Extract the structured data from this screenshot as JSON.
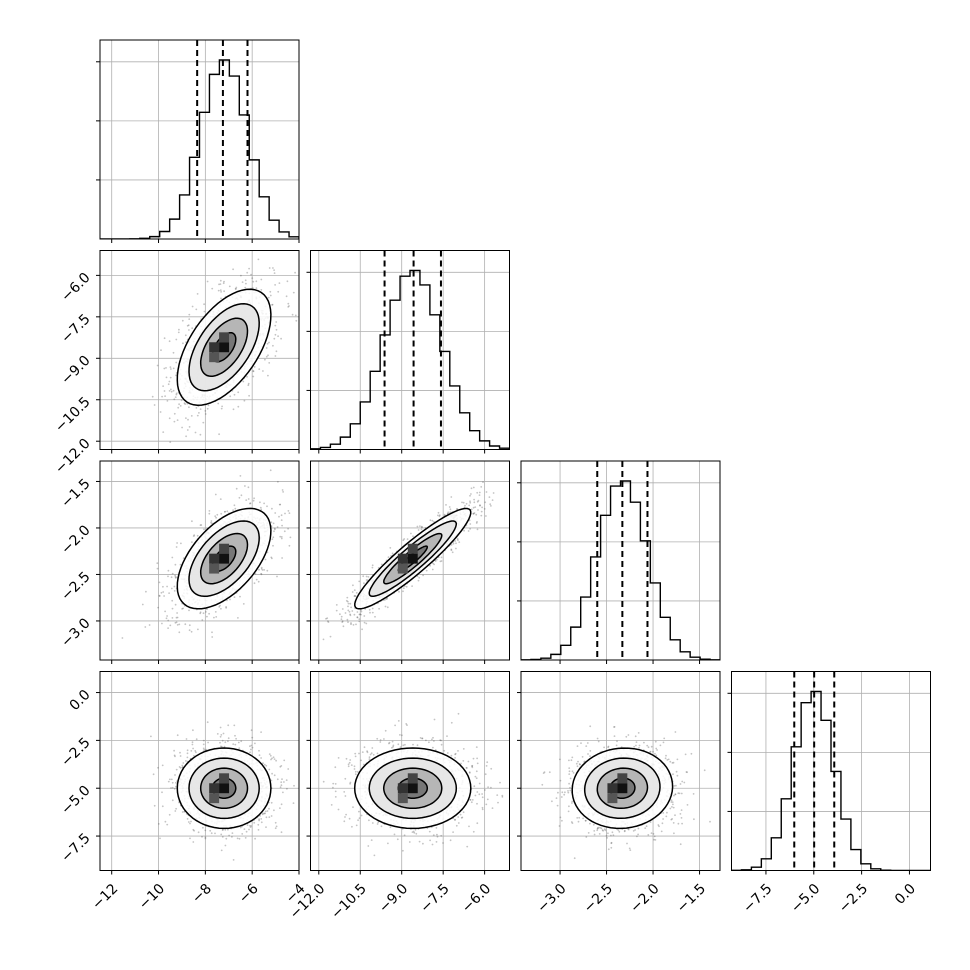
{
  "chart_data": {
    "type": "scatter",
    "subtype": "corner-plot",
    "grid": true,
    "n_params": 4,
    "params": [
      {
        "range": [
          -12.5,
          -4.0
        ],
        "ticks": [
          -12,
          -10,
          -8,
          -6,
          -4
        ],
        "tick_labels": [
          "−12",
          "−10",
          "−8",
          "−6",
          "−4"
        ],
        "mean": -7.2,
        "sigma": 1.0
      },
      {
        "range": [
          -12.3,
          -5.1
        ],
        "ticks": [
          -12.0,
          -10.5,
          -9.0,
          -7.5,
          -6.0
        ],
        "tick_labels": [
          "−12.0",
          "−10.5",
          "−9.0",
          "−7.5",
          "−6.0"
        ],
        "mean": -8.6,
        "sigma": 1.05
      },
      {
        "range": [
          -3.42,
          -1.28
        ],
        "ticks": [
          -3.0,
          -2.5,
          -2.0,
          -1.5
        ],
        "tick_labels": [
          "−3.0",
          "−2.5",
          "−2.0",
          "−1.5"
        ],
        "mean": -2.33,
        "sigma": 0.27
      },
      {
        "range": [
          -9.3,
          1.1
        ],
        "ticks": [
          -7.5,
          -5.0,
          -2.5,
          0.0
        ],
        "tick_labels": [
          "−7.5",
          "−5.0",
          "−2.5",
          "0.0"
        ],
        "mean": -5.0,
        "sigma": 1.05
      }
    ],
    "quantiles": [
      {
        "q16": -8.35,
        "q50": -7.25,
        "q84": -6.2
      },
      {
        "q16": -9.62,
        "q50": -8.57,
        "q84": -7.58
      },
      {
        "q16": -2.6,
        "q50": -2.33,
        "q84": -2.06
      },
      {
        "q16": -6.02,
        "q50": -4.98,
        "q84": -3.93
      }
    ],
    "correlations": [
      {
        "pair": [
          0,
          1
        ],
        "rho": 0.55
      },
      {
        "pair": [
          0,
          2
        ],
        "rho": 0.55
      },
      {
        "pair": [
          1,
          2
        ],
        "rho": 0.92
      },
      {
        "pair": [
          0,
          3
        ],
        "rho": 0.0
      },
      {
        "pair": [
          1,
          3
        ],
        "rho": 0.0
      },
      {
        "pair": [
          2,
          3
        ],
        "rho": 0.05
      }
    ],
    "contour_levels_sigma": [
      0.5,
      1.0,
      1.5,
      2.0
    ],
    "histogram_bins": 20,
    "title": "",
    "xlabel": "",
    "ylabel": ""
  }
}
